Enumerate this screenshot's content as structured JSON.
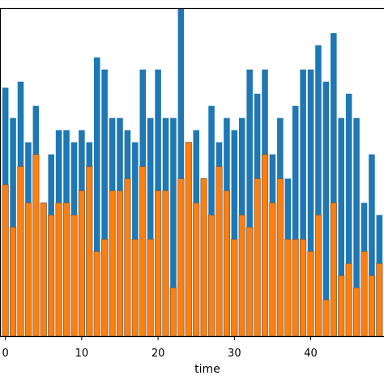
{
  "chart_data": {
    "type": "bar",
    "xlabel": "time",
    "ylabel": "",
    "title": "",
    "xlim": [
      -0.6,
      49.6
    ],
    "ylim": [
      0,
      27
    ],
    "x_ticks": [
      0,
      10,
      20,
      30,
      40
    ],
    "grid": false,
    "legend": "none",
    "x": [
      0,
      1,
      2,
      3,
      4,
      5,
      6,
      7,
      8,
      9,
      10,
      11,
      12,
      13,
      14,
      15,
      16,
      17,
      18,
      19,
      20,
      21,
      22,
      23,
      24,
      25,
      26,
      27,
      28,
      29,
      30,
      31,
      32,
      33,
      34,
      35,
      36,
      37,
      38,
      39,
      40,
      41,
      42,
      43,
      44,
      45,
      46,
      47,
      48,
      49
    ],
    "series": [
      {
        "color": "#1f77b4",
        "values": [
          20.5,
          18,
          21,
          16,
          19,
          11,
          15,
          17,
          17,
          16,
          17,
          16,
          23,
          22,
          18,
          18,
          17,
          16,
          22,
          18,
          22,
          18,
          18,
          27,
          15,
          17,
          11,
          19,
          16,
          18,
          17,
          18,
          22,
          20,
          22,
          15,
          18,
          13,
          19,
          22,
          22,
          24,
          21,
          25,
          18,
          20,
          18,
          11,
          15,
          10
        ]
      },
      {
        "color": "#ff7f0e",
        "values": [
          12.5,
          9,
          14,
          11,
          15,
          11,
          10,
          11,
          11,
          10,
          12,
          14,
          7,
          8,
          12,
          12,
          13,
          8,
          14,
          8,
          12,
          12,
          4,
          13,
          16,
          11,
          13,
          10,
          14,
          12,
          8,
          10,
          9,
          13,
          15,
          11,
          13,
          8,
          8,
          8,
          7,
          10,
          3,
          11,
          5,
          6,
          4,
          7,
          5,
          6
        ]
      }
    ],
    "bar_edge_color": "#555555"
  }
}
